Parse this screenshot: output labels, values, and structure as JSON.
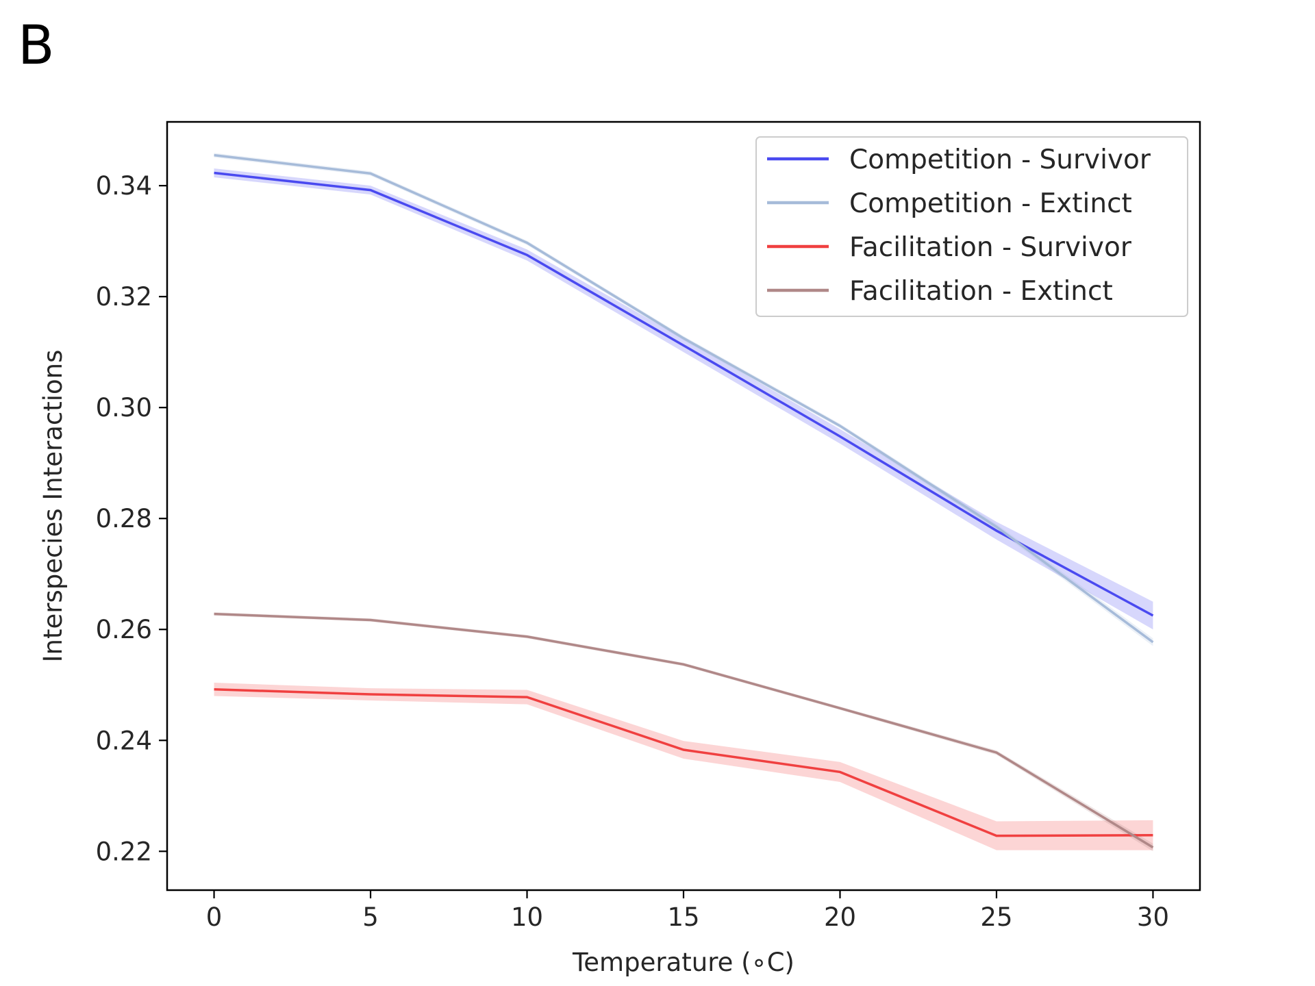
{
  "panel_label": "B",
  "chart_data": {
    "type": "line",
    "title": "",
    "xlabel": "Temperature (∘C)",
    "ylabel": "Interspecies Interactions",
    "x": [
      0,
      5,
      10,
      15,
      20,
      25,
      30
    ],
    "xticks": [
      0,
      5,
      10,
      15,
      20,
      25,
      30
    ],
    "yticks": [
      0.22,
      0.24,
      0.26,
      0.28,
      0.3,
      0.32,
      0.34
    ],
    "ytick_labels": [
      "0.22",
      "0.24",
      "0.26",
      "0.28",
      "0.30",
      "0.32",
      "0.34"
    ],
    "xlim": [
      -1.5,
      31.5
    ],
    "ylim": [
      0.213,
      0.3515
    ],
    "grid": false,
    "legend_position": "top-right",
    "series": [
      {
        "name": "Competition - Survivor",
        "color": "#4a4af0",
        "values": [
          0.3423,
          0.3392,
          0.3275,
          0.3112,
          0.2948,
          0.2778,
          0.2625
        ],
        "lower": [
          0.3415,
          0.3384,
          0.3265,
          0.31,
          0.2935,
          0.2762,
          0.26
        ],
        "upper": [
          0.3431,
          0.34,
          0.3285,
          0.3124,
          0.2961,
          0.2794,
          0.265
        ]
      },
      {
        "name": "Competition - Extinct",
        "color": "#a6bbd9",
        "values": [
          0.3455,
          0.3422,
          0.3297,
          0.3125,
          0.2967,
          0.2785,
          0.2577
        ],
        "lower": [
          0.3451,
          0.3418,
          0.3293,
          0.3121,
          0.2963,
          0.278,
          0.257
        ],
        "upper": [
          0.3459,
          0.3426,
          0.3301,
          0.3129,
          0.2971,
          0.279,
          0.2584
        ]
      },
      {
        "name": "Facilitation - Survivor",
        "color": "#f04040",
        "values": [
          0.2492,
          0.2483,
          0.2478,
          0.2383,
          0.2343,
          0.2228,
          0.2229
        ],
        "lower": [
          0.248,
          0.2472,
          0.2465,
          0.2367,
          0.2325,
          0.2202,
          0.2202
        ],
        "upper": [
          0.2504,
          0.2494,
          0.2491,
          0.2399,
          0.2361,
          0.2254,
          0.2256
        ]
      },
      {
        "name": "Facilitation - Extinct",
        "color": "#b08888",
        "values": [
          0.2628,
          0.2617,
          0.2587,
          0.2537,
          0.2458,
          0.2378,
          0.2207
        ],
        "lower": [
          0.2625,
          0.2614,
          0.2584,
          0.2534,
          0.2455,
          0.2374,
          0.22
        ],
        "upper": [
          0.2631,
          0.262,
          0.259,
          0.254,
          0.2461,
          0.2382,
          0.2214
        ]
      }
    ]
  }
}
